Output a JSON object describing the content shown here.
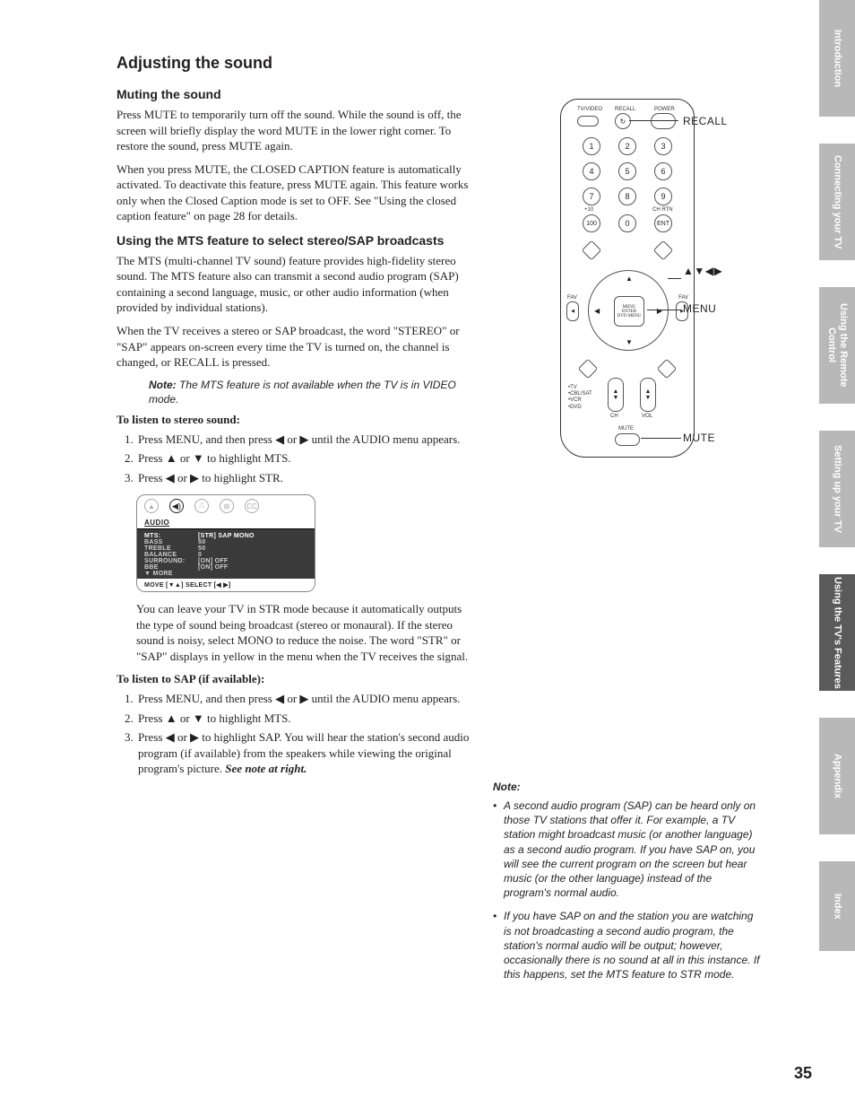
{
  "title": "Adjusting the sound",
  "muting": {
    "heading": "Muting the sound",
    "p1": "Press MUTE to temporarily turn off the sound. While the sound is off, the screen will briefly display the word MUTE in the lower right corner. To restore the sound, press MUTE again.",
    "p2": "When you press MUTE, the CLOSED CAPTION feature is automatically activated. To deactivate this feature, press MUTE again. This feature works only when the Closed Caption mode is set to OFF. See \"Using the closed caption feature\" on page 28 for details."
  },
  "mts": {
    "heading": "Using the MTS feature to select stereo/SAP broadcasts",
    "p1": "The MTS (multi-channel TV sound) feature provides high-fidelity stereo sound. The MTS feature also can transmit a second audio program (SAP) containing a second language, music, or other audio information (when provided by individual stations).",
    "p2": "When the TV receives a stereo or SAP broadcast, the word \"STEREO\" or \"SAP\" appears on-screen every time the TV is turned on, the channel is changed, or RECALL is pressed.",
    "note_label": "Note:",
    "note": " The MTS feature is not available when the TV is in VIDEO mode.",
    "stereo_heading": "To listen to stereo sound:",
    "stereo_steps": [
      "Press MENU, and then press ◀ or ▶ until the AUDIO menu appears.",
      "Press ▲ or ▼ to highlight MTS.",
      "Press ◀ or ▶ to highlight STR."
    ],
    "stereo_after": "You can leave your TV in STR mode because it automatically outputs the type of sound being broadcast (stereo or monaural). If the stereo sound is noisy, select MONO to reduce the noise. The word \"STR\" or \"SAP\" displays in yellow in the menu when the TV receives the signal.",
    "sap_heading": "To listen to SAP (if available):",
    "sap_step1": "Press MENU, and then press ◀ or ▶ until the AUDIO menu appears.",
    "sap_step2": "Press ▲ or ▼ to highlight MTS.",
    "sap_step3_a": "Press ◀ or ▶ to highlight SAP. You will hear the station's second audio program (if available) from the speakers while viewing the original program's picture. ",
    "sap_step3_b": "See note at right."
  },
  "osd": {
    "title": "AUDIO",
    "rows": [
      {
        "k": "MTS:",
        "v": "[STR] SAP MONO",
        "hl": true
      },
      {
        "k": "BASS",
        "v": "50"
      },
      {
        "k": "TREBLE",
        "v": "50"
      },
      {
        "k": "BALANCE",
        "v": "0"
      },
      {
        "k": "SURROUND:",
        "v": "[ON] OFF"
      },
      {
        "k": "BBE",
        "v": "[ON] OFF"
      },
      {
        "k": "▼ MORE",
        "v": ""
      }
    ],
    "foot": "MOVE [▼▲]    SELECT [◀ ▶]"
  },
  "remote": {
    "top_labels": {
      "tvvideo": "TV/VIDEO",
      "recall": "RECALL",
      "power": "POWER"
    },
    "callouts": {
      "recall": "RECALL",
      "arrows": "▲▼◀▶",
      "menu": "MENU",
      "mute": "MUTE"
    },
    "numbers": [
      "1",
      "2",
      "3",
      "4",
      "5",
      "6",
      "7",
      "8",
      "9",
      "100",
      "0",
      "ENT"
    ],
    "chrtn": "CH RTN",
    "plus10": "+10",
    "center": "MENU\nENTER\nDVD MENU",
    "fav": "FAV",
    "bottom_labels": [
      "TV",
      "CBL/SAT",
      "VCR",
      "DVD"
    ],
    "ch": "CH",
    "vol": "VOL",
    "mute": "MUTE"
  },
  "right_note": {
    "heading": "Note:",
    "items": [
      "A second audio program (SAP) can be heard only on those TV stations that offer it. For example, a TV station might broadcast music (or another language) as a second audio program. If you have SAP on, you will see the current program on the screen but hear music (or the other language) instead of the program's normal audio.",
      "If you have SAP on and the station you are watching is not broadcasting a second audio program, the station's normal audio will be output; however, occasionally there is no sound at all in this instance. If this happens, set the MTS feature to STR mode."
    ]
  },
  "tabs": [
    "Introduction",
    "Connecting your TV",
    "Using the Remote Control",
    "Setting up your TV",
    "Using the TV's Features",
    "Appendix",
    "Index"
  ],
  "active_tab_index": 4,
  "page_number": "35"
}
